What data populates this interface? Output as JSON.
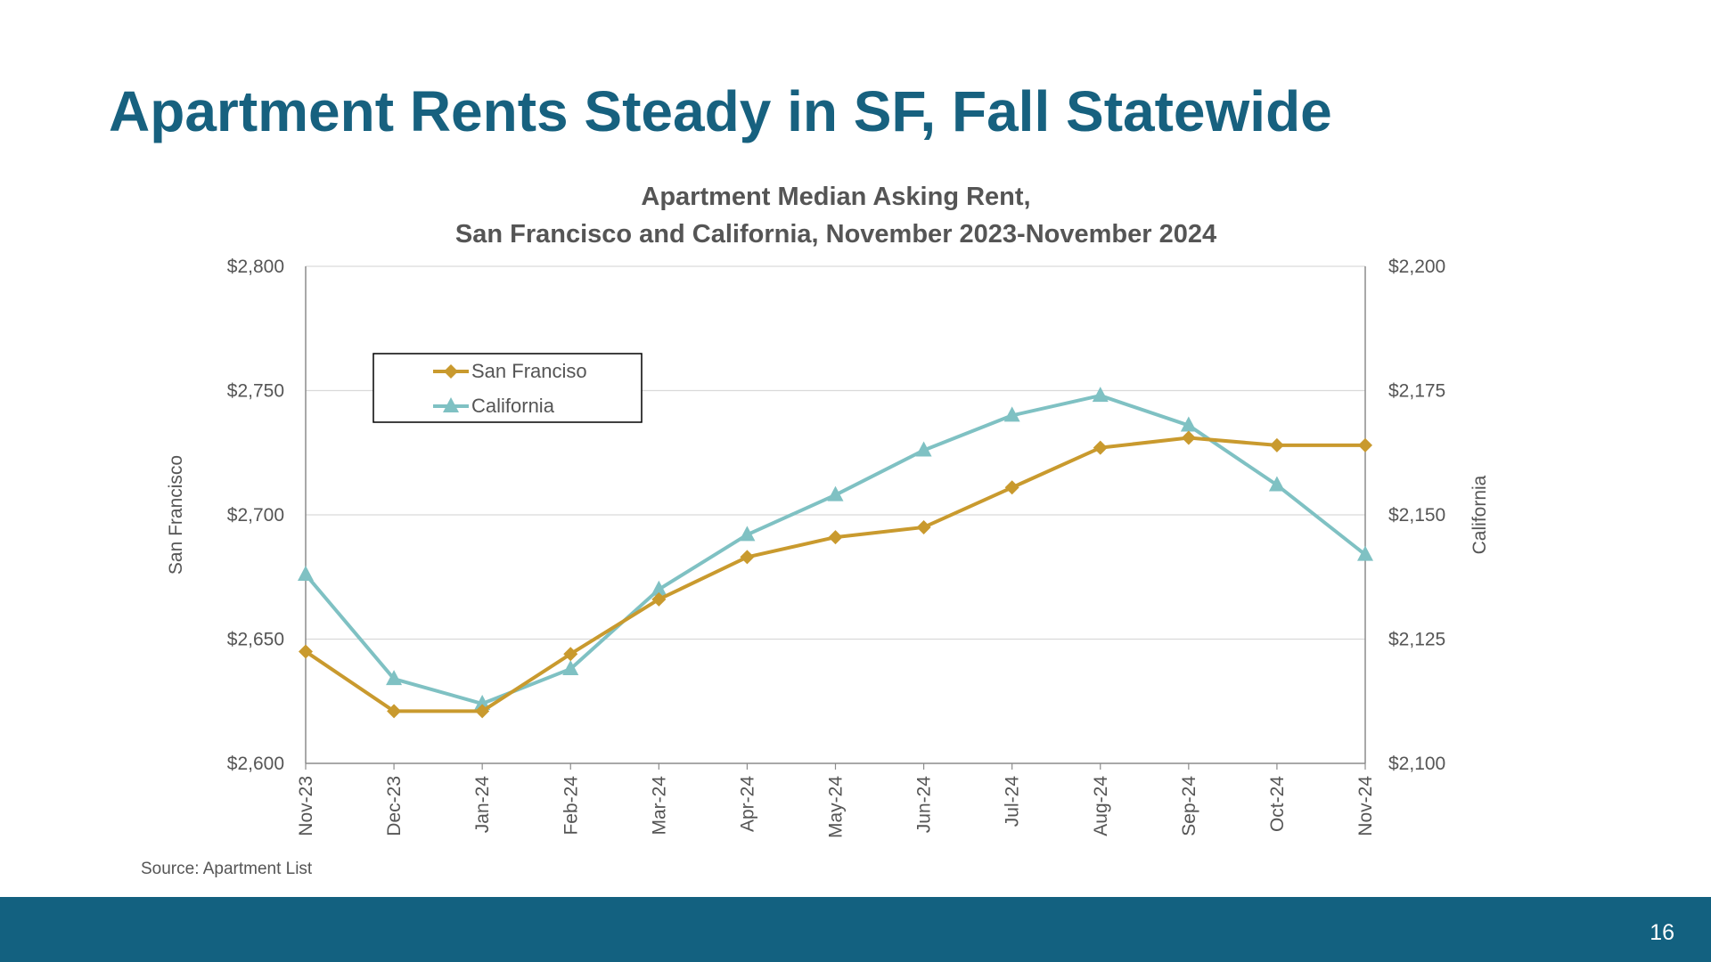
{
  "slide": {
    "title": "Apartment Rents Steady in SF, Fall Statewide",
    "source": "Source: Apartment List",
    "page_number": "16"
  },
  "colors": {
    "title": "#17617f",
    "footer_bar": "#136180",
    "san_francisco": "#c99a2e",
    "california": "#7fc1c3",
    "text": "#555555"
  },
  "chart_data": {
    "type": "line",
    "title_line1": "Apartment Median Asking Rent,",
    "title_line2": "San Francisco and California, November 2023-November 2024",
    "categories": [
      "Nov-23",
      "Dec-23",
      "Jan-24",
      "Feb-24",
      "Mar-24",
      "Apr-24",
      "May-24",
      "Jun-24",
      "Jul-24",
      "Aug-24",
      "Sep-24",
      "Oct-24",
      "Nov-24"
    ],
    "y_left": {
      "label": "San Francisco",
      "ylim": [
        2600,
        2800
      ],
      "ticks": [
        2600,
        2650,
        2700,
        2750,
        2800
      ],
      "tick_labels": [
        "$2,600",
        "$2,650",
        "$2,700",
        "$2,750",
        "$2,800"
      ]
    },
    "y_right": {
      "label": "California",
      "ylim": [
        2100,
        2200
      ],
      "ticks": [
        2100,
        2125,
        2150,
        2175,
        2200
      ],
      "tick_labels": [
        "$2,100",
        "$2,125",
        "$2,150",
        "$2,175",
        "$2,200"
      ]
    },
    "grid": true,
    "legend_position": "top-left",
    "series": [
      {
        "name": "San Franciso",
        "axis": "left",
        "marker": "diamond",
        "color": "#c99a2e",
        "values": [
          2645,
          2621,
          2621,
          2644,
          2666,
          2683,
          2691,
          2695,
          2711,
          2727,
          2731,
          2728,
          2728
        ]
      },
      {
        "name": "California",
        "axis": "right",
        "marker": "triangle",
        "color": "#7fc1c3",
        "values": [
          2138,
          2117,
          2112,
          2119,
          2135,
          2146,
          2154,
          2163,
          2170,
          2174,
          2168,
          2156,
          2142
        ]
      }
    ]
  }
}
